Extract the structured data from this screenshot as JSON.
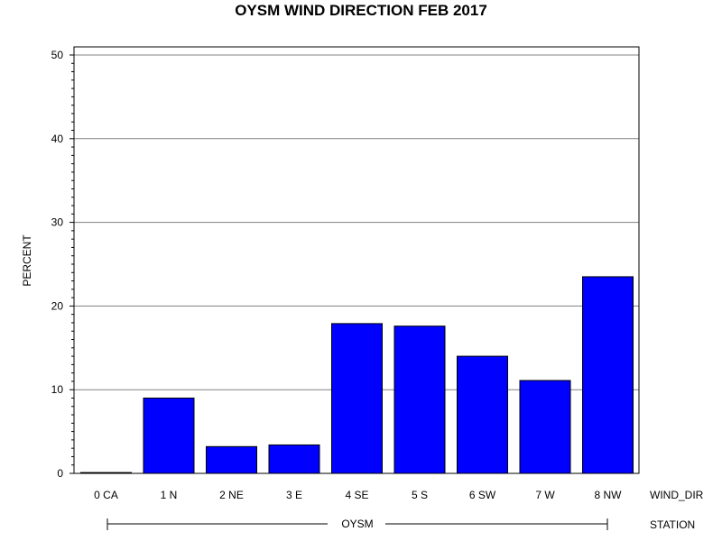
{
  "chart_data": {
    "type": "bar",
    "title": "OYSM WIND DIRECTION FEB 2017",
    "ylabel": "PERCENT",
    "xlabel": "WIND_DIR",
    "group_label": "STATION",
    "group_name": "OYSM",
    "ylim": [
      0,
      50
    ],
    "yticks": [
      "0",
      "10",
      "20",
      "30",
      "40",
      "50"
    ],
    "categories": [
      "0 CA",
      "1 N",
      "2 NE",
      "3 E",
      "4 SE",
      "5 S",
      "6 SW",
      "7 W",
      "8 NW"
    ],
    "values": [
      0.1,
      9.0,
      3.2,
      3.4,
      17.9,
      17.6,
      14.0,
      11.1,
      23.5
    ],
    "grid": true,
    "bar_color": "#0000ff"
  }
}
